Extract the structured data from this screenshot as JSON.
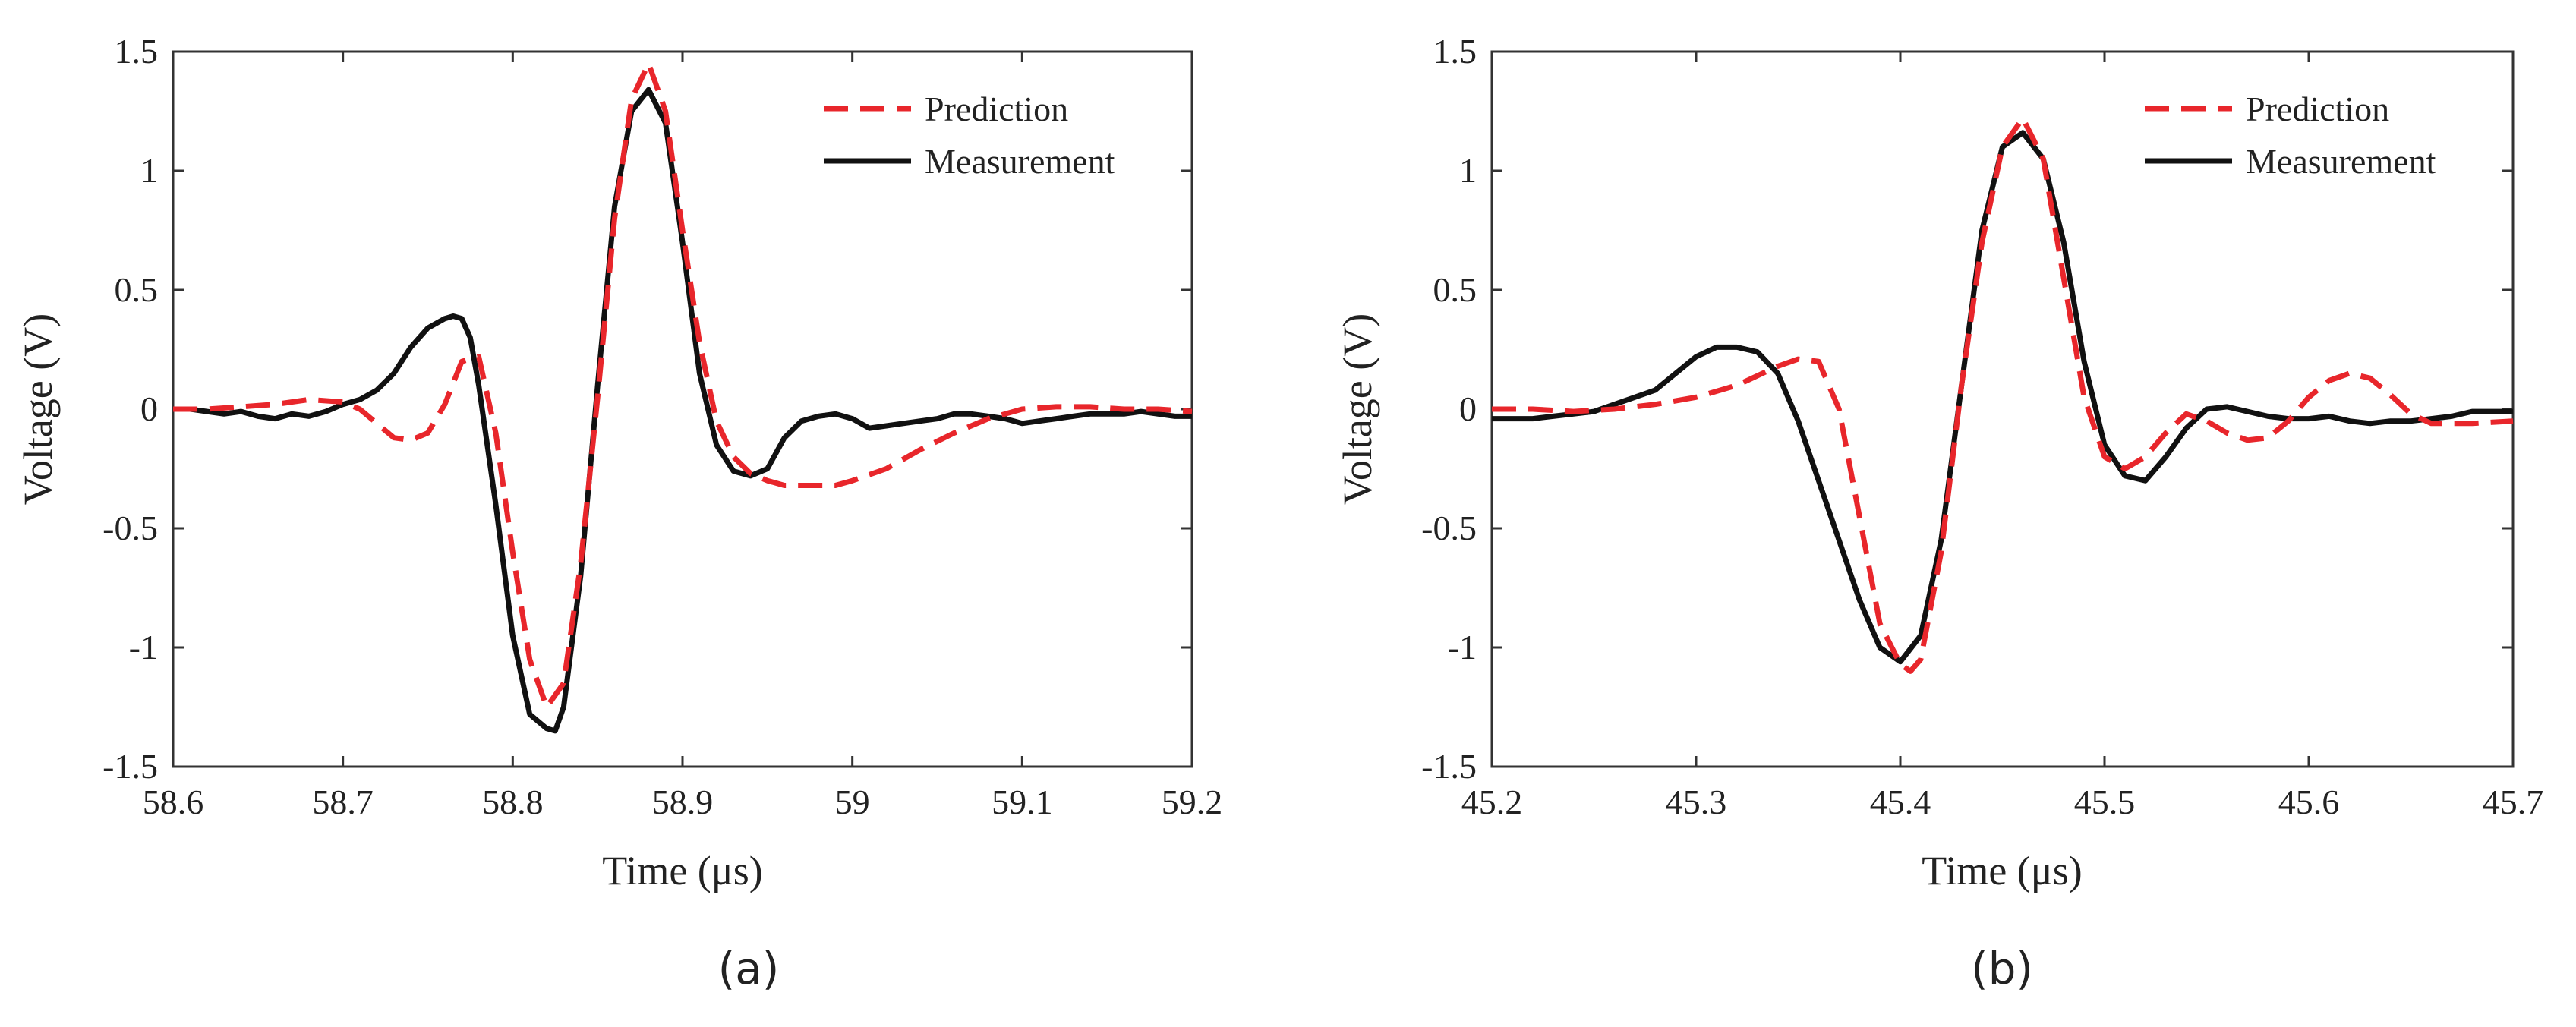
{
  "colors": {
    "prediction": "#e8262b",
    "measurement": "#111111",
    "axis": "#333333"
  },
  "chart_data": [
    {
      "type": "line",
      "panel_label": "(a)",
      "xlabel": "Time (μs)",
      "ylabel": "Voltage (V)",
      "xlim": [
        58.6,
        59.2
      ],
      "ylim": [
        -1.5,
        1.5
      ],
      "xticks": [
        58.6,
        58.7,
        58.8,
        58.9,
        59.0,
        59.1,
        59.2
      ],
      "xtick_labels": [
        "58.6",
        "58.7",
        "58.8",
        "58.9",
        "59",
        "59.1",
        "59.2"
      ],
      "yticks": [
        1.5,
        1,
        0.5,
        0,
        -0.5,
        -1,
        -1.5
      ],
      "ytick_labels": [
        "1.5",
        "1",
        "0.5",
        "0",
        "-0.5",
        "-1",
        "-1.5"
      ],
      "legend_position": "top-right",
      "series": [
        {
          "name": "Prediction",
          "style": "dashed",
          "x": [
            58.6,
            58.62,
            58.64,
            58.66,
            58.68,
            58.7,
            58.71,
            58.72,
            58.73,
            58.74,
            58.75,
            58.76,
            58.77,
            58.78,
            58.79,
            58.8,
            58.81,
            58.82,
            58.83,
            58.84,
            58.85,
            58.86,
            58.87,
            58.88,
            58.89,
            58.9,
            58.91,
            58.92,
            58.93,
            58.94,
            58.95,
            58.96,
            58.97,
            58.98,
            58.99,
            59.0,
            59.02,
            59.04,
            59.06,
            59.08,
            59.1,
            59.12,
            59.14,
            59.16,
            59.18,
            59.2
          ],
          "y": [
            0.0,
            0.0,
            0.01,
            0.02,
            0.04,
            0.03,
            0.0,
            -0.06,
            -0.12,
            -0.13,
            -0.1,
            0.02,
            0.2,
            0.22,
            -0.1,
            -0.6,
            -1.05,
            -1.25,
            -1.15,
            -0.65,
            0.05,
            0.8,
            1.3,
            1.45,
            1.25,
            0.75,
            0.28,
            -0.05,
            -0.2,
            -0.27,
            -0.3,
            -0.32,
            -0.32,
            -0.32,
            -0.32,
            -0.3,
            -0.25,
            -0.17,
            -0.1,
            -0.04,
            0.0,
            0.01,
            0.01,
            0.0,
            0.0,
            -0.01
          ]
        },
        {
          "name": "Measurement",
          "style": "solid",
          "x": [
            58.6,
            58.61,
            58.62,
            58.63,
            58.64,
            58.65,
            58.66,
            58.67,
            58.68,
            58.69,
            58.7,
            58.71,
            58.72,
            58.73,
            58.74,
            58.75,
            58.76,
            58.765,
            58.77,
            58.775,
            58.78,
            58.79,
            58.8,
            58.81,
            58.82,
            58.825,
            58.83,
            58.84,
            58.85,
            58.86,
            58.87,
            58.88,
            58.89,
            58.9,
            58.91,
            58.92,
            58.93,
            58.94,
            58.95,
            58.96,
            58.97,
            58.98,
            58.99,
            59.0,
            59.01,
            59.02,
            59.03,
            59.04,
            59.05,
            59.06,
            59.07,
            59.08,
            59.09,
            59.1,
            59.11,
            59.12,
            59.13,
            59.14,
            59.15,
            59.16,
            59.17,
            59.18,
            59.19,
            59.2
          ],
          "y": [
            0.0,
            0.0,
            -0.01,
            -0.02,
            -0.01,
            -0.03,
            -0.04,
            -0.02,
            -0.03,
            -0.01,
            0.02,
            0.04,
            0.08,
            0.15,
            0.26,
            0.34,
            0.38,
            0.39,
            0.38,
            0.3,
            0.1,
            -0.4,
            -0.95,
            -1.28,
            -1.34,
            -1.35,
            -1.25,
            -0.7,
            0.1,
            0.85,
            1.25,
            1.34,
            1.2,
            0.7,
            0.15,
            -0.15,
            -0.26,
            -0.28,
            -0.25,
            -0.12,
            -0.05,
            -0.03,
            -0.02,
            -0.04,
            -0.08,
            -0.07,
            -0.06,
            -0.05,
            -0.04,
            -0.02,
            -0.02,
            -0.03,
            -0.04,
            -0.06,
            -0.05,
            -0.04,
            -0.03,
            -0.02,
            -0.02,
            -0.02,
            -0.01,
            -0.02,
            -0.03,
            -0.03
          ]
        }
      ]
    },
    {
      "type": "line",
      "panel_label": "(b)",
      "xlabel": "Time (μs)",
      "ylabel": "Voltage (V)",
      "xlim": [
        45.2,
        45.7
      ],
      "ylim": [
        -1.5,
        1.5
      ],
      "xticks": [
        45.2,
        45.3,
        45.4,
        45.5,
        45.6,
        45.7
      ],
      "xtick_labels": [
        "45.2",
        "45.3",
        "45.4",
        "45.5",
        "45.6",
        "45.7"
      ],
      "yticks": [
        1.5,
        1,
        0.5,
        0,
        -0.5,
        -1,
        -1.5
      ],
      "ytick_labels": [
        "1.5",
        "1",
        "0.5",
        "0",
        "-0.5",
        "-1",
        "-1.5"
      ],
      "legend_position": "top-right",
      "series": [
        {
          "name": "Prediction",
          "style": "dashed",
          "x": [
            45.2,
            45.22,
            45.24,
            45.26,
            45.28,
            45.3,
            45.32,
            45.34,
            45.35,
            45.36,
            45.37,
            45.38,
            45.39,
            45.4,
            45.405,
            45.41,
            45.42,
            45.43,
            45.44,
            45.45,
            45.46,
            45.47,
            45.48,
            45.49,
            45.5,
            45.51,
            45.52,
            45.53,
            45.54,
            45.55,
            45.56,
            45.57,
            45.58,
            45.59,
            45.6,
            45.61,
            45.62,
            45.63,
            45.64,
            45.65,
            45.66,
            45.68,
            45.7
          ],
          "y": [
            0.0,
            0.0,
            -0.01,
            0.0,
            0.02,
            0.05,
            0.1,
            0.18,
            0.21,
            0.2,
            0.0,
            -0.45,
            -0.9,
            -1.07,
            -1.1,
            -1.05,
            -0.6,
            0.1,
            0.7,
            1.1,
            1.22,
            1.05,
            0.55,
            0.05,
            -0.2,
            -0.25,
            -0.2,
            -0.1,
            -0.02,
            -0.05,
            -0.1,
            -0.13,
            -0.12,
            -0.05,
            0.05,
            0.12,
            0.15,
            0.13,
            0.06,
            -0.02,
            -0.06,
            -0.06,
            -0.05
          ]
        },
        {
          "name": "Measurement",
          "style": "solid",
          "x": [
            45.2,
            45.21,
            45.22,
            45.23,
            45.24,
            45.25,
            45.26,
            45.27,
            45.28,
            45.29,
            45.3,
            45.31,
            45.32,
            45.33,
            45.34,
            45.35,
            45.36,
            45.37,
            45.38,
            45.39,
            45.4,
            45.41,
            45.42,
            45.43,
            45.44,
            45.45,
            45.46,
            45.47,
            45.48,
            45.49,
            45.5,
            45.51,
            45.52,
            45.53,
            45.54,
            45.55,
            45.56,
            45.57,
            45.58,
            45.59,
            45.6,
            45.61,
            45.62,
            45.63,
            45.64,
            45.65,
            45.66,
            45.67,
            45.68,
            45.69,
            45.7
          ],
          "y": [
            -0.04,
            -0.04,
            -0.04,
            -0.03,
            -0.02,
            -0.01,
            0.02,
            0.05,
            0.08,
            0.15,
            0.22,
            0.26,
            0.26,
            0.24,
            0.15,
            -0.05,
            -0.3,
            -0.55,
            -0.8,
            -1.0,
            -1.06,
            -0.95,
            -0.55,
            0.1,
            0.75,
            1.1,
            1.16,
            1.05,
            0.7,
            0.2,
            -0.15,
            -0.28,
            -0.3,
            -0.2,
            -0.08,
            0.0,
            0.01,
            -0.01,
            -0.03,
            -0.04,
            -0.04,
            -0.03,
            -0.05,
            -0.06,
            -0.05,
            -0.05,
            -0.04,
            -0.03,
            -0.01,
            -0.01,
            -0.01
          ]
        }
      ]
    }
  ]
}
